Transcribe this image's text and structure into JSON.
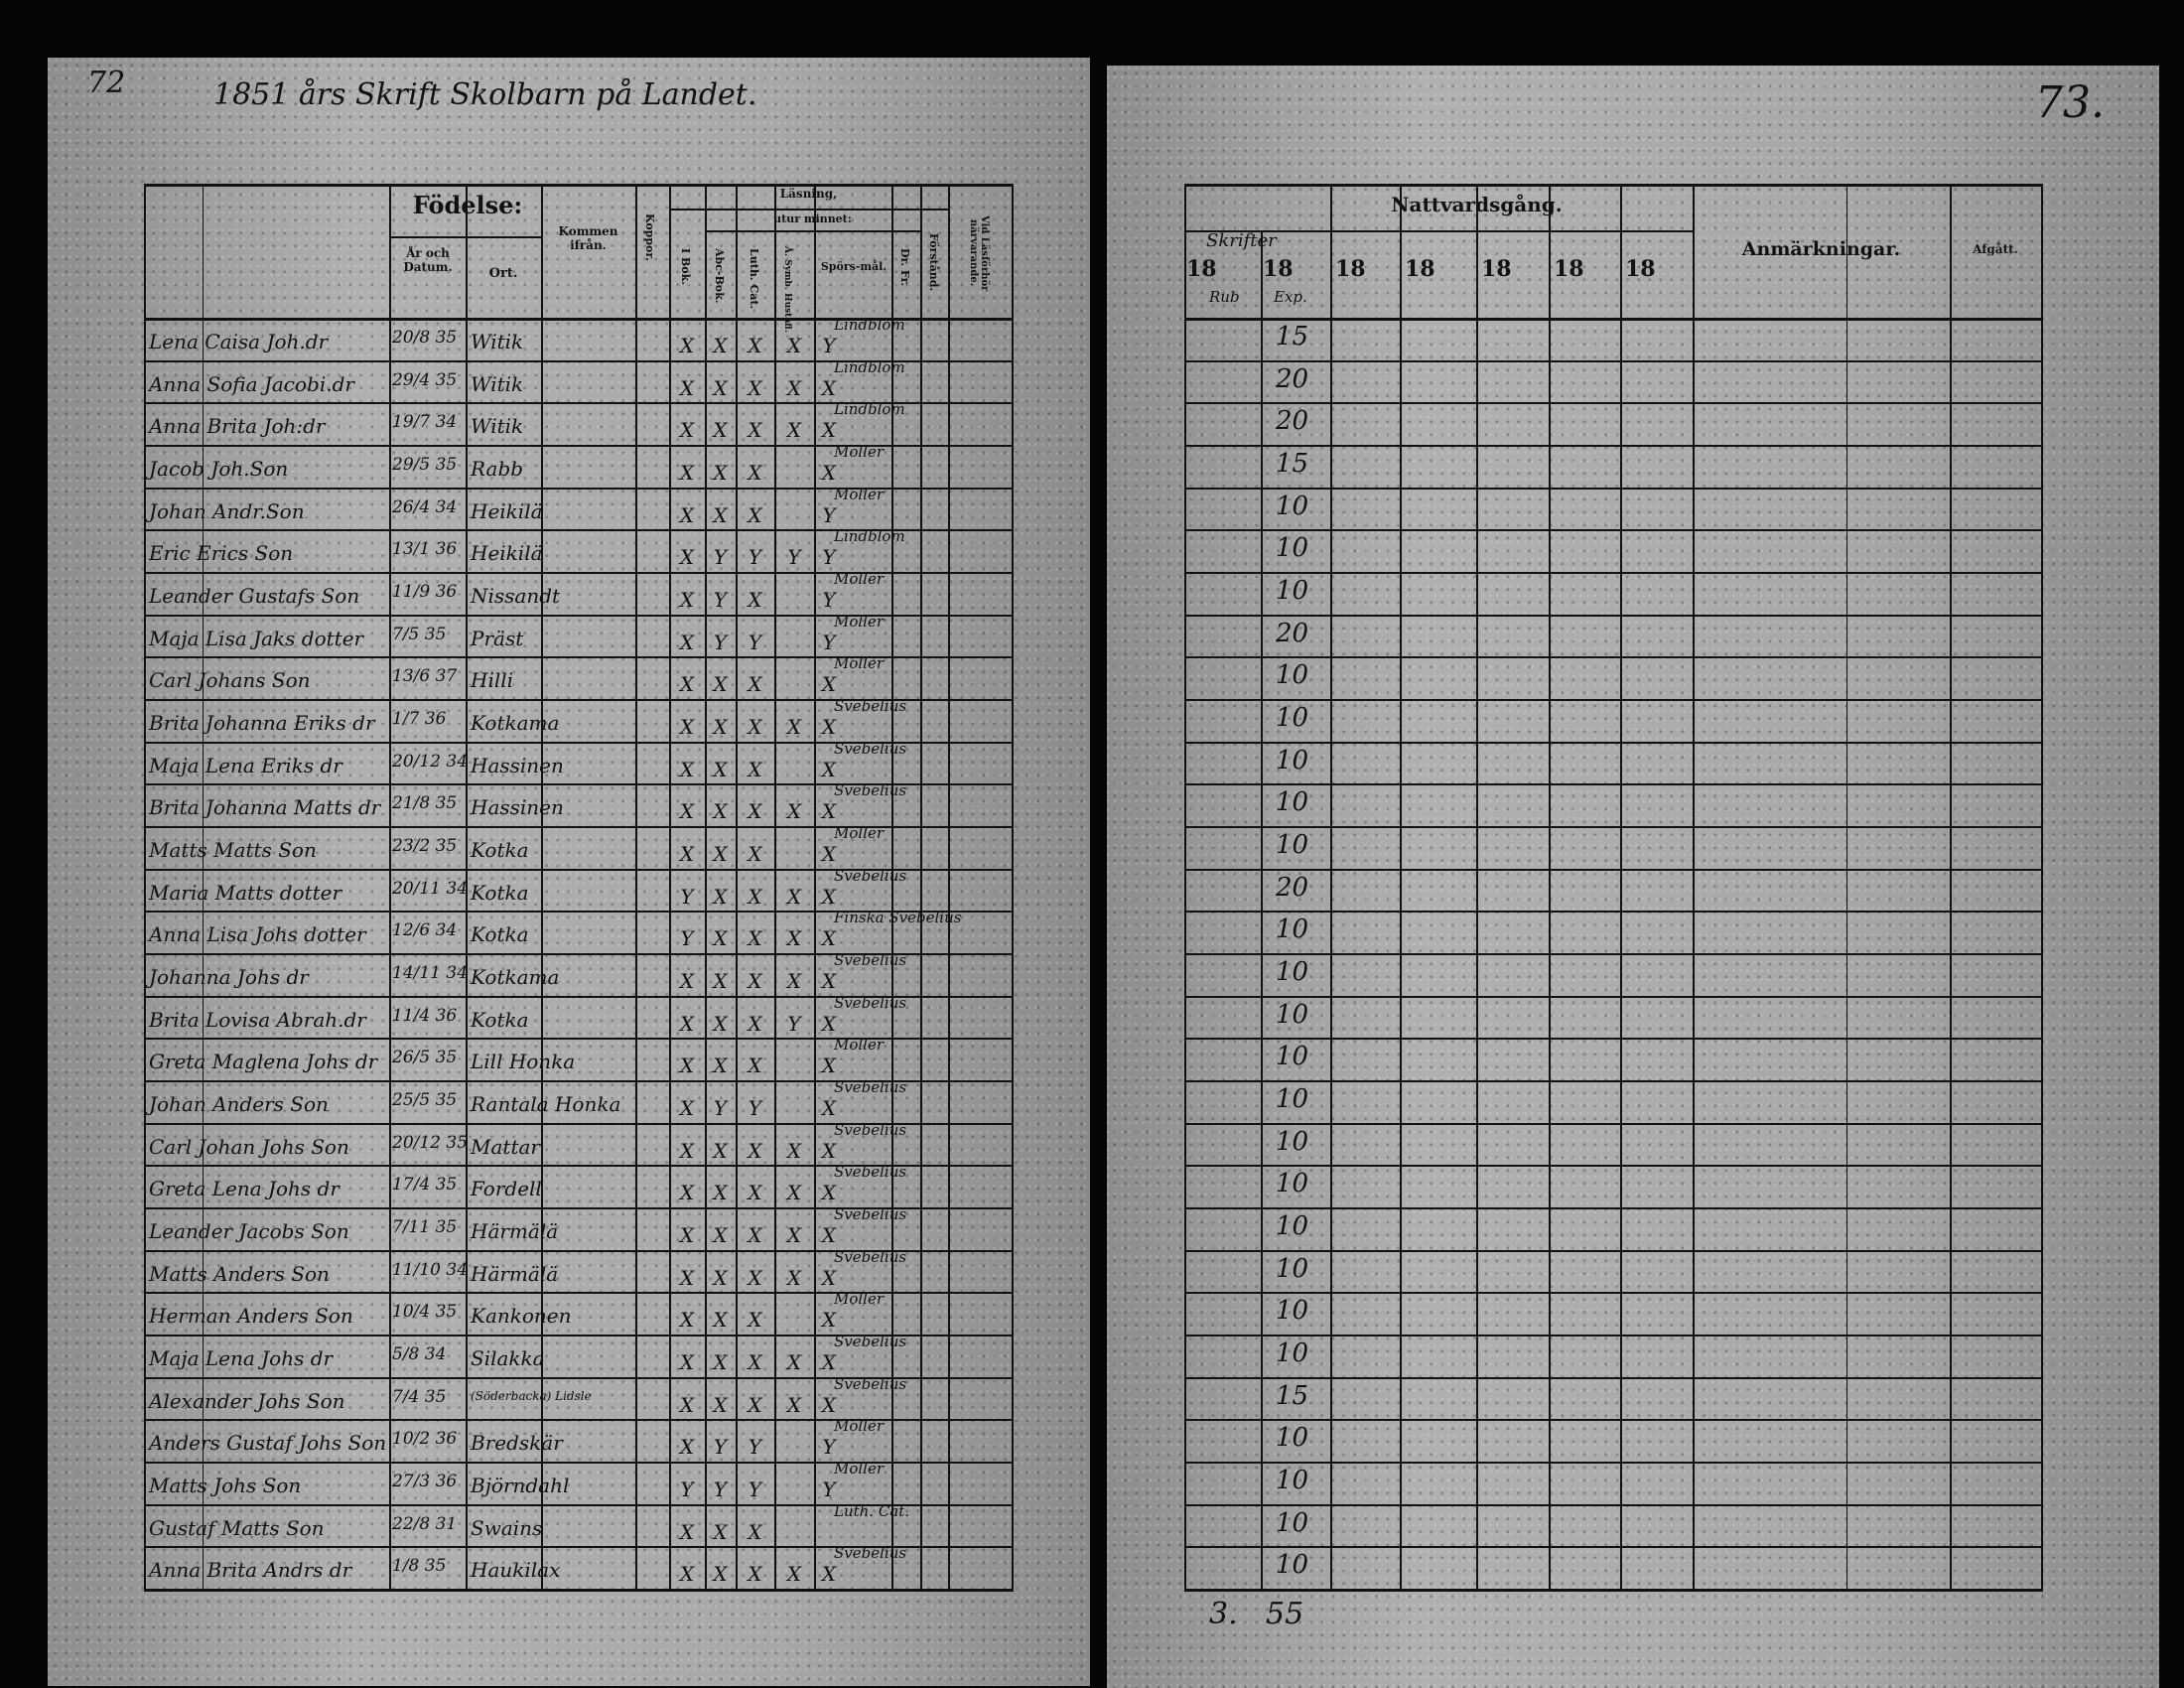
{
  "left_page": {
    "page_number": "72",
    "title": "1851 års Skrift Skolbarn på Landet.",
    "headers": {
      "fodelse": "Födelse:",
      "ar_och_datum": "År och Datum.",
      "ort": "Ort.",
      "kommen_ifran": "Kommen ifrån.",
      "koppor": "Koppor.",
      "lasning": "Läsning,",
      "utur_minnet": "utur minnet:",
      "i_bok": "I Bok.",
      "abc_bok": "Abc-Bok.",
      "luth_cat": "Luth. Cat.",
      "symb": "Å. Symb. Hustafl.",
      "sporsmal": "Spörs-mål.",
      "dr_fr": "Dr. Fr.",
      "forstand": "Förstånd.",
      "vid_lasforhor": "Vid Läsförhör närvarande."
    },
    "rows": [
      {
        "name": "Lena Caisa Joh.dr",
        "date": "20/8 35",
        "ort": "Witik",
        "marks": [
          "X",
          "X",
          "X",
          "X",
          "Y"
        ],
        "note": "Lindblom"
      },
      {
        "name": "Anna Sofia Jacobi.dr",
        "date": "29/4 35",
        "ort": "Witik",
        "marks": [
          "X",
          "X",
          "X",
          "X",
          "X"
        ],
        "note": "Lindblom"
      },
      {
        "name": "Anna Brita Joh:dr",
        "date": "19/7 34",
        "ort": "Witik",
        "marks": [
          "X",
          "X",
          "X",
          "X",
          "X"
        ],
        "note": "Lindblom"
      },
      {
        "name": "Jacob Joh.Son",
        "date": "29/5 35",
        "ort": "Rabb",
        "marks": [
          "X",
          "X",
          "X",
          "",
          "X"
        ],
        "note": "Möller"
      },
      {
        "name": "Johan Andr.Son",
        "date": "26/4 34",
        "ort": "Heikilä",
        "marks": [
          "X",
          "X",
          "X",
          "",
          "Y"
        ],
        "note": "Möller"
      },
      {
        "name": "Eric Erics Son",
        "date": "13/1 36",
        "ort": "Heikilä",
        "marks": [
          "X",
          "Y",
          "Y",
          "Y",
          "Y"
        ],
        "note": "Lindblom"
      },
      {
        "name": "Leander Gustafs Son",
        "date": "11/9 36",
        "ort": "Nissandt",
        "marks": [
          "X",
          "Y",
          "X",
          "",
          "Y"
        ],
        "note": "Möller"
      },
      {
        "name": "Maja Lisa Jaks dotter",
        "date": "7/5 35",
        "ort": "Präst",
        "marks": [
          "X",
          "Y",
          "Y",
          "",
          "Y"
        ],
        "note": "Möller"
      },
      {
        "name": "Carl Johans Son",
        "date": "13/6 37",
        "ort": "Hilli",
        "marks": [
          "X",
          "X",
          "X",
          "",
          "X"
        ],
        "note": "Möller"
      },
      {
        "name": "Brita Johanna Eriks dr",
        "date": "1/7 36",
        "ort": "Kotkama",
        "marks": [
          "X",
          "X",
          "X",
          "X",
          "X"
        ],
        "note": "Svebelius"
      },
      {
        "name": "Maja Lena Eriks dr",
        "date": "20/12 34",
        "ort": "Hassinen",
        "marks": [
          "X",
          "X",
          "X",
          "",
          "X"
        ],
        "note": "Svebelius"
      },
      {
        "name": "Brita Johanna Matts dr",
        "date": "21/8 35",
        "ort": "Hassinen",
        "marks": [
          "X",
          "X",
          "X",
          "X",
          "X"
        ],
        "note": "Svebelius"
      },
      {
        "name": "Matts Matts Son",
        "date": "23/2 35",
        "ort": "Kotka",
        "marks": [
          "X",
          "X",
          "X",
          "",
          "X"
        ],
        "note": "Möller"
      },
      {
        "name": "Maria Matts dotter",
        "date": "20/11 34",
        "ort": "Kotka",
        "marks": [
          "Y",
          "X",
          "X",
          "X",
          "X"
        ],
        "note": "Svebelius"
      },
      {
        "name": "Anna Lisa Johs dotter",
        "date": "12/6 34",
        "ort": "Kotka",
        "marks": [
          "Y",
          "X",
          "X",
          "X",
          "X"
        ],
        "note": "Finska Svebelius"
      },
      {
        "name": "Johanna Johs dr",
        "date": "14/11 34",
        "ort": "Kotkama",
        "marks": [
          "X",
          "X",
          "X",
          "X",
          "X"
        ],
        "note": "Svebelius"
      },
      {
        "name": "Brita Lovisa Abrah.dr",
        "date": "11/4 36",
        "ort": "Kotka",
        "marks": [
          "X",
          "X",
          "X",
          "Y",
          "X"
        ],
        "note": "Svebelius"
      },
      {
        "name": "Greta Maglena Johs dr",
        "date": "26/5 35",
        "ort": "Lill Honka",
        "marks": [
          "X",
          "X",
          "X",
          "",
          "X"
        ],
        "note": "Möller"
      },
      {
        "name": "Johan Anders Son",
        "date": "25/5 35",
        "ort": "Rantala Honka",
        "marks": [
          "X",
          "Y",
          "Y",
          "",
          "X"
        ],
        "note": "Svebelius"
      },
      {
        "name": "Carl Johan Johs Son",
        "date": "20/12 35",
        "ort": "Mattar",
        "marks": [
          "X",
          "X",
          "X",
          "X",
          "X"
        ],
        "note": "Svebelius"
      },
      {
        "name": "Greta Lena Johs dr",
        "date": "17/4 35",
        "ort": "Fordell",
        "marks": [
          "X",
          "X",
          "X",
          "X",
          "X"
        ],
        "note": "Svebelius"
      },
      {
        "name": "Leander Jacobs Son",
        "date": "7/11 35",
        "ort": "Härmälä",
        "marks": [
          "X",
          "X",
          "X",
          "X",
          "X"
        ],
        "note": "Svebelius"
      },
      {
        "name": "Matts Anders Son",
        "date": "11/10 34",
        "ort": "Härmälä",
        "marks": [
          "X",
          "X",
          "X",
          "X",
          "X"
        ],
        "note": "Svebelius"
      },
      {
        "name": "Herman Anders Son",
        "date": "10/4 35",
        "ort": "Kankonen",
        "marks": [
          "X",
          "X",
          "X",
          "",
          "X"
        ],
        "note": "Möller"
      },
      {
        "name": "Maja Lena Johs dr",
        "date": "5/8 34",
        "ort": "Silakka",
        "marks": [
          "X",
          "X",
          "X",
          "X",
          "X"
        ],
        "note": "Svebelius"
      },
      {
        "name": "Alexander Johs Son",
        "date": "7/4 35",
        "ort": "(Söderbacka) Lidsle",
        "marks": [
          "X",
          "X",
          "X",
          "X",
          "X"
        ],
        "note": "Svebelius"
      },
      {
        "name": "Anders Gustaf Johs Son",
        "date": "10/2 36",
        "ort": "Bredskär",
        "marks": [
          "X",
          "Y",
          "Y",
          "",
          "Y"
        ],
        "note": "Möller"
      },
      {
        "name": "Matts Johs Son",
        "date": "27/3 36",
        "ort": "Björndahl",
        "marks": [
          "Y",
          "Y",
          "Y",
          "",
          "Y"
        ],
        "note": "Möller"
      },
      {
        "name": "Gustaf Matts Son",
        "date": "22/8 31",
        "ort": "Swains",
        "marks": [
          "X",
          "X",
          "X",
          "",
          ""
        ],
        "note": "Luth. Cat."
      },
      {
        "name": "Anna Brita Andrs dr",
        "date": "1/8 35",
        "ort": "Haukilax",
        "marks": [
          "X",
          "X",
          "X",
          "X",
          "X"
        ],
        "note": "Svebelius"
      }
    ]
  },
  "right_page": {
    "page_number": "73.",
    "headers": {
      "nattvardsgang": "Nattvardsgång.",
      "skrifter": "Skrifter",
      "year": "18",
      "rub": "Rub",
      "exp": "Exp.",
      "anmarkningar": "Anmärkningar.",
      "afgatt": "Afgått."
    },
    "values": [
      "15",
      "20",
      "20",
      "15",
      "10",
      "10",
      "10",
      "20",
      "10",
      "10",
      "10",
      "10",
      "10",
      "20",
      "10",
      "10",
      "10",
      "10",
      "10",
      "10",
      "10",
      "10",
      "10",
      "10",
      "10",
      "15",
      "10",
      "10",
      "10",
      "10"
    ],
    "footer_count": "3.",
    "footer_total": "55"
  }
}
